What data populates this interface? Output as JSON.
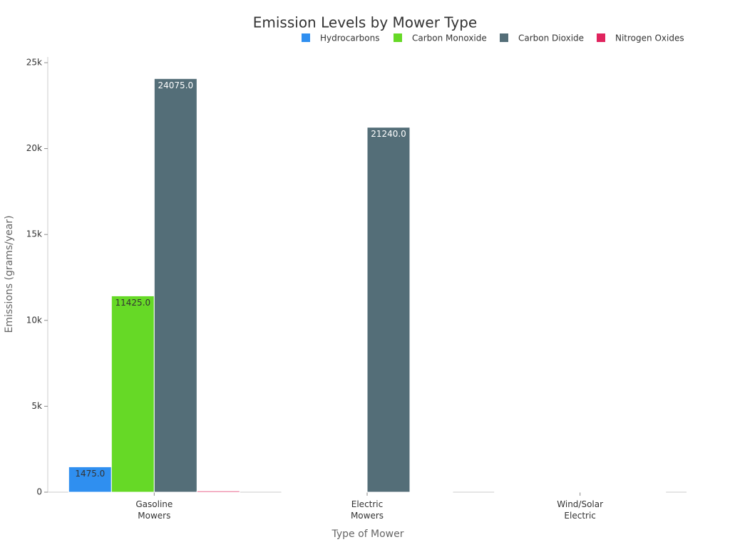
{
  "chart_data": {
    "type": "bar",
    "title": "Emission Levels by Mower Type",
    "x_label": "Type of Mower",
    "y_label": "Emissions (grams/year)",
    "categories": [
      "Gasoline Mowers",
      "Electric Mowers",
      "Wind/Solar Electric"
    ],
    "series": [
      {
        "name": "Hydrocarbons",
        "color": "#2f8ff0",
        "values": [
          1475,
          0,
          0
        ],
        "value_labels": [
          "1475.0",
          null,
          null
        ]
      },
      {
        "name": "Carbon Monoxide",
        "color": "#66d926",
        "values": [
          11425,
          0,
          0
        ],
        "value_labels": [
          "11425.0",
          null,
          null
        ]
      },
      {
        "name": "Carbon Dioxide",
        "color": "#546e78",
        "values": [
          24075,
          21240,
          0
        ],
        "value_labels": [
          "24075.0",
          "21240.0",
          null
        ]
      },
      {
        "name": "Nitrogen Oxides",
        "color": "#e0245e",
        "values": [
          70,
          10,
          0
        ],
        "value_labels": [
          null,
          null,
          null
        ]
      }
    ],
    "ylim": [
      0,
      25000
    ],
    "yticks": [
      0,
      {
        "value": 5000,
        "label": "5k"
      },
      {
        "value": 10000,
        "label": "10k"
      },
      {
        "value": 15000,
        "label": "15k"
      },
      {
        "value": 20000,
        "label": "20k"
      },
      {
        "value": 25000,
        "label": "25k"
      }
    ],
    "grid": false,
    "legend": "top-right"
  }
}
